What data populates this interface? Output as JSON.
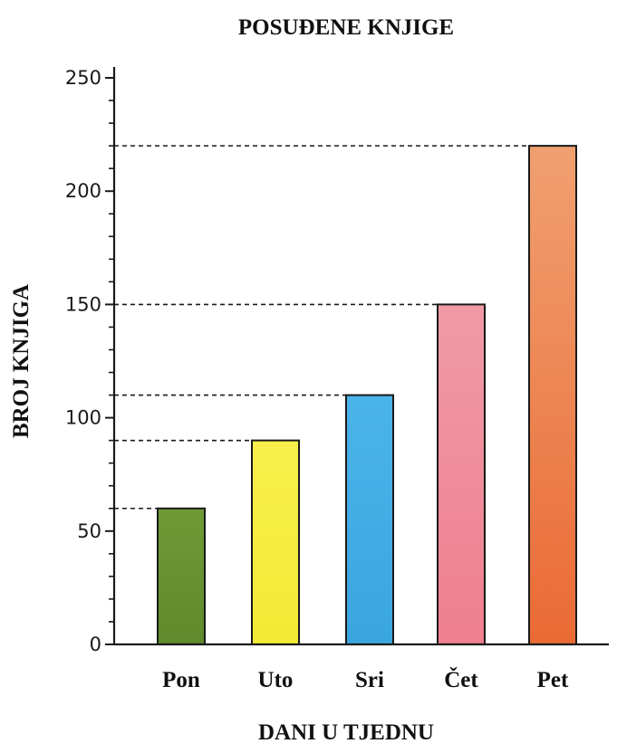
{
  "chart_data": {
    "type": "bar",
    "title": "POSUĐENE KNJIGE",
    "xlabel": "DANI U TJEDNU",
    "ylabel": "BROJ KNJIGA",
    "categories": [
      "Pon",
      "Uto",
      "Sri",
      "Čet",
      "Pet"
    ],
    "values": [
      60,
      90,
      110,
      150,
      220
    ],
    "ylim": [
      0,
      250
    ],
    "yticks": [
      "0",
      "50",
      "100",
      "150",
      "200",
      "250"
    ],
    "minor_tick_step": 10,
    "reference_lines": "dashed, from y-axis to top of each bar",
    "grid": false,
    "legend": "none",
    "bar_colors": [
      "#5f8a2b",
      "#f2ea35",
      "#3aa6de",
      "#ee7f8e",
      "#ea6a35"
    ],
    "gradient_top_colors": [
      "#6e9a36",
      "#f7f04a",
      "#4ab4ea",
      "#f09aa6",
      "#f0a070"
    ]
  }
}
